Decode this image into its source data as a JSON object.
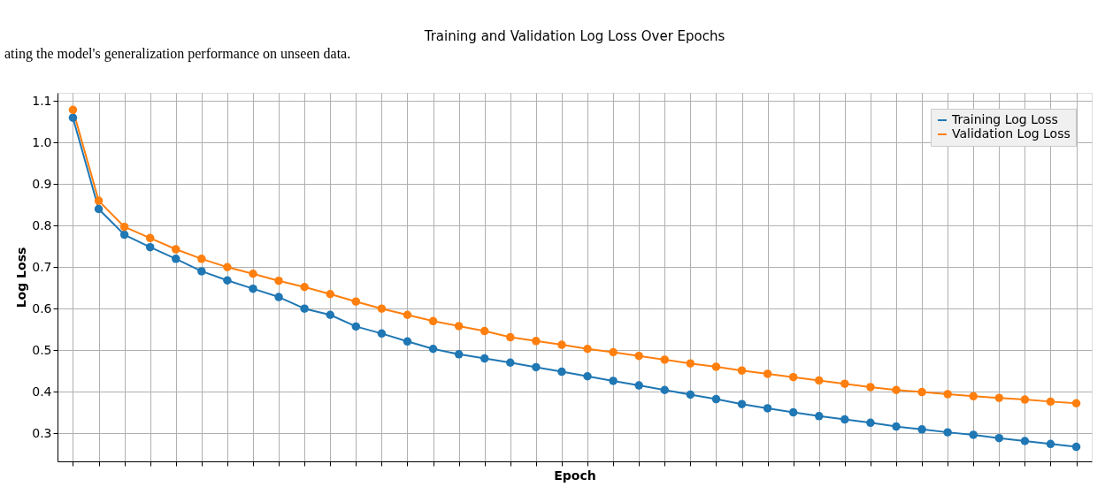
{
  "chart_data": {
    "type": "line",
    "title": "Training and Validation Log Loss Over Epochs",
    "xlabel": "Epoch",
    "ylabel": "Log Loss",
    "annotations": [
      "ating the model's generalization performance on unseen data."
    ],
    "categories": [
      null,
      null,
      null,
      null,
      null,
      null,
      null,
      null,
      null,
      null,
      null,
      null,
      null,
      null,
      null,
      null,
      null,
      null,
      null,
      null,
      null,
      null,
      null,
      null,
      null,
      null,
      null,
      null,
      null,
      null,
      null,
      null,
      null,
      null,
      null,
      null,
      null,
      null,
      null,
      null
    ],
    "series": [
      {
        "name": "Training Log Loss",
        "color": "#1f77b4",
        "values": [
          1.06,
          0.84,
          0.778,
          0.748,
          0.72,
          0.69,
          0.668,
          0.648,
          0.628,
          0.6,
          0.585,
          0.557,
          0.54,
          0.521,
          0.503,
          0.49,
          0.48,
          0.47,
          0.459,
          0.448,
          0.437,
          0.426,
          0.415,
          0.404,
          0.393,
          0.382,
          0.37,
          0.36,
          0.35,
          0.341,
          0.333,
          0.325,
          0.316,
          0.309,
          0.302,
          0.296,
          0.288,
          0.281,
          0.274,
          0.267
        ]
      },
      {
        "name": "Validation Log Loss",
        "color": "#ff7f0e",
        "values": [
          1.079,
          0.86,
          0.797,
          0.77,
          0.743,
          0.72,
          0.7,
          0.684,
          0.667,
          0.652,
          0.635,
          0.617,
          0.6,
          0.585,
          0.57,
          0.558,
          0.546,
          0.531,
          0.522,
          0.513,
          0.503,
          0.495,
          0.486,
          0.477,
          0.468,
          0.46,
          0.451,
          0.443,
          0.435,
          0.427,
          0.419,
          0.411,
          0.404,
          0.399,
          0.394,
          0.389,
          0.385,
          0.381,
          0.376,
          0.372
        ]
      }
    ],
    "ylim": [
      0.232,
      1.12
    ],
    "yticks": [
      0.3,
      0.4,
      0.5,
      0.6,
      0.7,
      0.8,
      0.9,
      {
        "value": 1.0,
        "label": "1.0"
      },
      1.1
    ],
    "grid": true,
    "legend": "top right",
    "marker": "circle",
    "line_style": "solid",
    "tick_labels": "y"
  }
}
